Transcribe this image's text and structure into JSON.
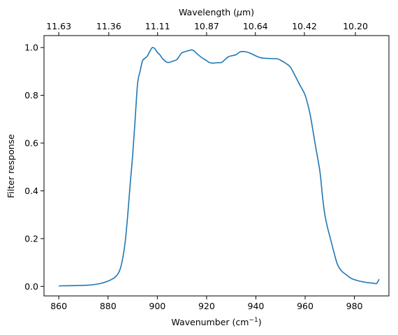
{
  "chart_data": {
    "type": "line",
    "xlabel": "Wavenumber (cm",
    "xlabel_sup": "−1",
    "xlabel_suffix": ")",
    "ylabel": "Filter response",
    "top_xlabel_prefix": "Wavelength (",
    "top_xlabel_mu": "μ",
    "top_xlabel_suffix": "m)",
    "xlim": [
      854,
      994
    ],
    "ylim": [
      -0.04,
      1.05
    ],
    "xticks": [
      860,
      880,
      900,
      920,
      940,
      960,
      980
    ],
    "xtick_labels": [
      "860",
      "880",
      "900",
      "920",
      "940",
      "960",
      "980"
    ],
    "yticks": [
      0.0,
      0.2,
      0.4,
      0.6,
      0.8,
      1.0
    ],
    "ytick_labels": [
      "0.0",
      "0.2",
      "0.4",
      "0.6",
      "0.8",
      "1.0"
    ],
    "top_ticks": [
      {
        "at": 860.0,
        "label": "11.63"
      },
      {
        "at": 880.3,
        "label": "11.36"
      },
      {
        "at": 900.1,
        "label": "11.11"
      },
      {
        "at": 920.0,
        "label": "10.87"
      },
      {
        "at": 939.8,
        "label": "10.64"
      },
      {
        "at": 959.7,
        "label": "10.42"
      },
      {
        "at": 980.4,
        "label": "10.20"
      }
    ],
    "grid": false,
    "line_color": "#1f77b4",
    "series": [
      {
        "x": [
          860,
          865,
          870,
          873,
          876,
          878,
          880,
          882,
          883,
          884,
          885,
          886,
          887,
          888,
          889,
          890,
          891,
          892,
          893,
          894,
          895,
          896,
          897,
          898,
          899,
          900,
          901,
          902,
          903,
          904,
          905,
          906,
          907,
          908,
          909,
          910,
          912,
          914,
          915,
          916,
          918,
          920,
          921,
          922,
          923,
          924,
          925,
          926,
          927,
          928,
          929,
          930,
          932,
          933,
          934,
          936,
          938,
          940,
          942,
          944,
          946,
          948,
          949,
          950,
          952,
          954,
          956,
          958,
          960,
          962,
          964,
          966,
          967,
          968,
          969,
          970,
          971,
          972,
          973,
          974,
          975,
          976,
          977,
          978,
          979,
          980,
          981,
          982,
          983,
          984,
          985,
          986,
          987,
          988,
          989,
          990
        ],
        "y": [
          0.002,
          0.003,
          0.004,
          0.006,
          0.01,
          0.015,
          0.022,
          0.032,
          0.04,
          0.052,
          0.075,
          0.12,
          0.19,
          0.3,
          0.43,
          0.55,
          0.7,
          0.85,
          0.9,
          0.945,
          0.955,
          0.965,
          0.985,
          1.0,
          0.995,
          0.98,
          0.97,
          0.955,
          0.945,
          0.938,
          0.938,
          0.942,
          0.945,
          0.95,
          0.965,
          0.978,
          0.985,
          0.99,
          0.985,
          0.975,
          0.958,
          0.945,
          0.938,
          0.935,
          0.935,
          0.936,
          0.937,
          0.937,
          0.945,
          0.955,
          0.962,
          0.965,
          0.97,
          0.978,
          0.983,
          0.982,
          0.975,
          0.965,
          0.957,
          0.955,
          0.954,
          0.953,
          0.952,
          0.947,
          0.935,
          0.918,
          0.88,
          0.84,
          0.8,
          0.72,
          0.6,
          0.48,
          0.38,
          0.3,
          0.25,
          0.21,
          0.17,
          0.13,
          0.095,
          0.075,
          0.062,
          0.054,
          0.046,
          0.038,
          0.032,
          0.028,
          0.025,
          0.022,
          0.02,
          0.018,
          0.016,
          0.015,
          0.014,
          0.013,
          0.012,
          0.03
        ]
      }
    ]
  }
}
